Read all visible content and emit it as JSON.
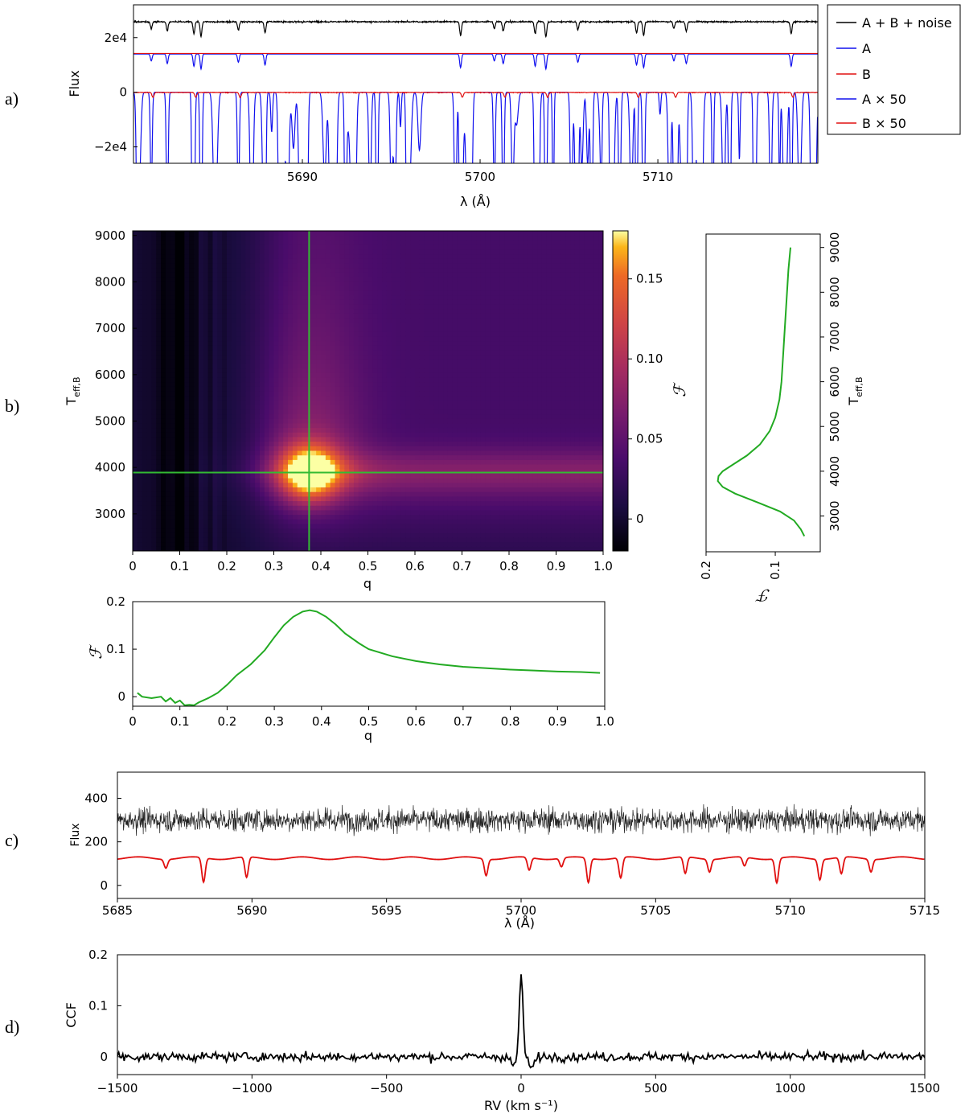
{
  "panel_labels": [
    "a)",
    "b)",
    "c)",
    "d)"
  ],
  "colors": {
    "black": "#000000",
    "blue": "#1010ee",
    "red": "#e01010",
    "green": "#22aa22",
    "cross": "#33bb33"
  },
  "chart_data": [
    {
      "id": "a",
      "type": "line",
      "xlabel": "λ (Å)",
      "ylabel": "Flux",
      "xlim": [
        5680.5,
        5719.0
      ],
      "ylim": [
        -26000,
        32000
      ],
      "xticks": [
        5690,
        5700,
        5710
      ],
      "xtick_labels": [
        "5690",
        "5700",
        "5710"
      ],
      "yticks": [
        -20000,
        0,
        20000
      ],
      "ytick_labels": [
        "−2e4",
        "0",
        "2e4"
      ],
      "legend": [
        "A + B + noise",
        "A",
        "B",
        "A × 50",
        "B × 50"
      ],
      "legend_position": "outside-right",
      "continuum_levels": {
        "A + B + noise": 25800,
        "A": 14000,
        "B": 14200,
        "A × 50": 0,
        "B × 50": 0
      },
      "line_centers": [
        5681.5,
        5682.4,
        5683.9,
        5684.3,
        5686.4,
        5687.9,
        5698.9,
        5700.8,
        5701.3,
        5703.1,
        5703.7,
        5705.5,
        5708.8,
        5709.2,
        5710.9,
        5711.6,
        5717.5
      ]
    },
    {
      "id": "b-heatmap",
      "type": "heatmap",
      "xlabel": "q",
      "ylabel": "T_eff,B",
      "colorbar_label": "F",
      "xlim": [
        0,
        1
      ],
      "ylim": [
        2200,
        9100
      ],
      "xticks": [
        0,
        0.1,
        0.2,
        0.3,
        0.4,
        0.5,
        0.6,
        0.7,
        0.8,
        0.9,
        1.0
      ],
      "xtick_labels": [
        "0",
        "0.1",
        "0.2",
        "0.3",
        "0.4",
        "0.5",
        "0.6",
        "0.7",
        "0.8",
        "0.9",
        "1.0"
      ],
      "yticks": [
        3000,
        4000,
        5000,
        6000,
        7000,
        8000,
        9000
      ],
      "ytick_labels": [
        "3000",
        "4000",
        "5000",
        "6000",
        "7000",
        "8000",
        "9000"
      ],
      "clim": [
        -0.02,
        0.18
      ],
      "colorbar_ticks": [
        0,
        0.05,
        0.1,
        0.15
      ],
      "colorbar_tick_labels": [
        "0",
        "0.05",
        "0.10",
        "0.15"
      ],
      "colormap": "inferno",
      "peak": {
        "q": 0.375,
        "T": 3890,
        "F": 0.18
      },
      "crosshair": {
        "q": 0.375,
        "T": 3890
      }
    },
    {
      "id": "b-side",
      "type": "line",
      "xlabel": "F",
      "ylabel": "T_eff,B",
      "xlim": [
        0.2,
        0.035
      ],
      "ylim": [
        2200,
        9300
      ],
      "xticks": [
        0.2,
        0.1
      ],
      "xtick_labels": [
        "0.2",
        "0.1"
      ],
      "yticks": [
        3000,
        4000,
        5000,
        6000,
        7000,
        8000,
        9000
      ],
      "ytick_labels": [
        "3000",
        "4000",
        "5000",
        "6000",
        "7000",
        "8000",
        "9000"
      ],
      "T": [
        2550,
        2700,
        2900,
        3100,
        3300,
        3500,
        3650,
        3780,
        3890,
        4000,
        4150,
        4350,
        4600,
        4900,
        5200,
        5600,
        6000,
        6500,
        7000,
        7500,
        8000,
        8500,
        9000
      ],
      "F": [
        0.058,
        0.063,
        0.073,
        0.093,
        0.125,
        0.158,
        0.176,
        0.183,
        0.182,
        0.176,
        0.161,
        0.141,
        0.122,
        0.108,
        0.1,
        0.094,
        0.091,
        0.089,
        0.087,
        0.085,
        0.083,
        0.081,
        0.078
      ]
    },
    {
      "id": "b-bottom",
      "type": "line",
      "xlabel": "q",
      "ylabel": "F",
      "xlim": [
        0,
        1
      ],
      "ylim": [
        -0.02,
        0.2
      ],
      "xticks": [
        0,
        0.1,
        0.2,
        0.3,
        0.4,
        0.5,
        0.6,
        0.7,
        0.8,
        0.9,
        1.0
      ],
      "xtick_labels": [
        "0",
        "0.1",
        "0.2",
        "0.3",
        "0.4",
        "0.5",
        "0.6",
        "0.7",
        "0.8",
        "0.9",
        "1.0"
      ],
      "yticks": [
        0,
        0.1,
        0.2
      ],
      "ytick_labels": [
        "0",
        "0.1",
        "0.2"
      ],
      "q": [
        0.01,
        0.02,
        0.04,
        0.06,
        0.07,
        0.08,
        0.09,
        0.1,
        0.11,
        0.12,
        0.13,
        0.14,
        0.16,
        0.18,
        0.2,
        0.22,
        0.25,
        0.28,
        0.3,
        0.32,
        0.34,
        0.36,
        0.375,
        0.39,
        0.41,
        0.43,
        0.45,
        0.48,
        0.5,
        0.55,
        0.6,
        0.65,
        0.7,
        0.75,
        0.8,
        0.85,
        0.9,
        0.95,
        0.99
      ],
      "F": [
        0.008,
        0.0,
        -0.003,
        0.0,
        -0.01,
        -0.003,
        -0.013,
        -0.008,
        -0.018,
        -0.017,
        -0.018,
        -0.012,
        -0.003,
        0.008,
        0.025,
        0.045,
        0.068,
        0.098,
        0.125,
        0.15,
        0.168,
        0.179,
        0.182,
        0.179,
        0.168,
        0.152,
        0.133,
        0.112,
        0.1,
        0.085,
        0.075,
        0.068,
        0.063,
        0.06,
        0.057,
        0.055,
        0.053,
        0.052,
        0.05
      ]
    },
    {
      "id": "c",
      "type": "line",
      "xlabel": "λ (Å)",
      "ylabel": "Flux",
      "xlim": [
        5685,
        5715
      ],
      "ylim": [
        -60,
        520
      ],
      "xticks": [
        5685,
        5690,
        5695,
        5700,
        5705,
        5710,
        5715
      ],
      "xtick_labels": [
        "5685",
        "5690",
        "5695",
        "5700",
        "5705",
        "5710",
        "5715"
      ],
      "yticks": [
        0,
        200,
        400
      ],
      "ytick_labels": [
        "0",
        "200",
        "400"
      ],
      "noisy_mean": 300,
      "model_continuum": 125,
      "line_centers": [
        5686.8,
        5688.2,
        5689.8,
        5698.7,
        5700.3,
        5701.5,
        5702.5,
        5703.7,
        5706.1,
        5707.0,
        5708.3,
        5709.5,
        5711.1,
        5711.9,
        5713.0
      ]
    },
    {
      "id": "d",
      "type": "line",
      "xlabel": "RV (km s⁻¹)",
      "ylabel": "CCF",
      "xlim": [
        -1500,
        1500
      ],
      "ylim": [
        -0.035,
        0.2
      ],
      "xticks": [
        -1500,
        -1000,
        -500,
        0,
        500,
        1000,
        1500
      ],
      "xtick_labels": [
        "−1500",
        "−1000",
        "−500",
        "0",
        "500",
        "1000",
        "1500"
      ],
      "yticks": [
        0,
        0.1,
        0.2
      ],
      "ytick_labels": [
        "0",
        "0.1",
        "0.2"
      ],
      "peak": {
        "rv": 0,
        "ccf": 0.165
      }
    }
  ]
}
